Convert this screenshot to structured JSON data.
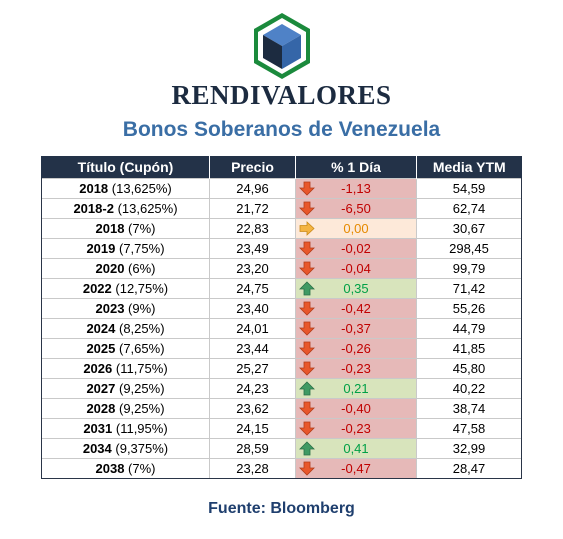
{
  "brand": "RENDIVALORES",
  "subtitle": "Bonos Soberanos de Venezuela",
  "headers": [
    "Título (Cupón)",
    "Precio",
    "% 1 Día",
    "Media YTM"
  ],
  "rows": [
    {
      "year": "2018",
      "coupon": "(13,625%)",
      "price": "24,96",
      "change": "-1,13",
      "trend": "down",
      "ytm": "54,59"
    },
    {
      "year": "2018-2",
      "coupon": "(13,625%)",
      "price": "21,72",
      "change": "-6,50",
      "trend": "down",
      "ytm": "62,74"
    },
    {
      "year": "2018",
      "coupon": "(7%)",
      "price": "22,83",
      "change": "0,00",
      "trend": "flat",
      "ytm": "30,67"
    },
    {
      "year": "2019",
      "coupon": "(7,75%)",
      "price": "23,49",
      "change": "-0,02",
      "trend": "down",
      "ytm": "298,45"
    },
    {
      "year": "2020",
      "coupon": "(6%)",
      "price": "23,20",
      "change": "-0,04",
      "trend": "down",
      "ytm": "99,79"
    },
    {
      "year": "2022",
      "coupon": "(12,75%)",
      "price": "24,75",
      "change": "0,35",
      "trend": "up",
      "ytm": "71,42"
    },
    {
      "year": "2023",
      "coupon": "(9%)",
      "price": "23,40",
      "change": "-0,42",
      "trend": "down",
      "ytm": "55,26"
    },
    {
      "year": "2024",
      "coupon": "(8,25%)",
      "price": "24,01",
      "change": "-0,37",
      "trend": "down",
      "ytm": "44,79"
    },
    {
      "year": "2025",
      "coupon": "(7,65%)",
      "price": "23,44",
      "change": "-0,26",
      "trend": "down",
      "ytm": "41,85"
    },
    {
      "year": "2026",
      "coupon": "(11,75%)",
      "price": "25,27",
      "change": "-0,23",
      "trend": "down",
      "ytm": "45,80"
    },
    {
      "year": "2027",
      "coupon": "(9,25%)",
      "price": "24,23",
      "change": "0,21",
      "trend": "up",
      "ytm": "40,22"
    },
    {
      "year": "2028",
      "coupon": "(9,25%)",
      "price": "23,62",
      "change": "-0,40",
      "trend": "down",
      "ytm": "38,74"
    },
    {
      "year": "2031",
      "coupon": "(11,95%)",
      "price": "24,15",
      "change": "-0,23",
      "trend": "down",
      "ytm": "47,58"
    },
    {
      "year": "2034",
      "coupon": "(9,375%)",
      "price": "28,59",
      "change": "0,41",
      "trend": "up",
      "ytm": "32,99"
    },
    {
      "year": "2038",
      "coupon": "(7%)",
      "price": "23,28",
      "change": "-0,47",
      "trend": "down",
      "ytm": "28,47"
    }
  ],
  "icons": {
    "down": "arrow-down-icon",
    "up": "arrow-up-icon",
    "flat": "arrow-right-icon"
  },
  "colors": {
    "header_bg": "#233248",
    "negative_bg": "#e6b9b8",
    "positive_bg": "#d8e4bc",
    "neutral_bg": "#fde9d9"
  },
  "source": "Fuente: Bloomberg"
}
